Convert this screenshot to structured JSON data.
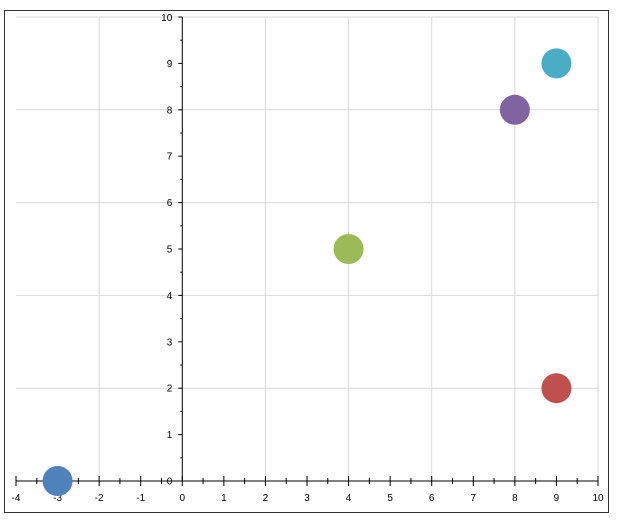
{
  "chart_data": {
    "type": "scatter",
    "title": "",
    "xlabel": "",
    "ylabel": "",
    "xlim": [
      -4,
      10
    ],
    "ylim": [
      0,
      10
    ],
    "x_ticks": [
      -4,
      -3,
      -2,
      -1,
      0,
      1,
      2,
      3,
      4,
      5,
      6,
      7,
      8,
      9,
      10
    ],
    "y_ticks": [
      0,
      1,
      2,
      3,
      4,
      5,
      6,
      7,
      8,
      9,
      10
    ],
    "x_tick_labels": [
      "-4",
      "-3",
      "-2",
      "-1",
      "0",
      "1",
      "2",
      "3",
      "4",
      "5",
      "6",
      "7",
      "8",
      "9",
      "10"
    ],
    "y_tick_labels": [
      "0",
      "1",
      "2",
      "3",
      "4",
      "5",
      "6",
      "7",
      "8",
      "9",
      "10"
    ],
    "grid": true,
    "legend": "none",
    "points": [
      {
        "x": -3,
        "y": 0,
        "color": "#4f81bd"
      },
      {
        "x": 9,
        "y": 2,
        "color": "#c0504d"
      },
      {
        "x": 4,
        "y": 5,
        "color": "#9bbb59"
      },
      {
        "x": 8,
        "y": 8,
        "color": "#8064a2"
      },
      {
        "x": 9,
        "y": 9,
        "color": "#4bacc6"
      }
    ],
    "colors": {
      "grid": "#d9d9d9",
      "axis": "#000000"
    }
  }
}
